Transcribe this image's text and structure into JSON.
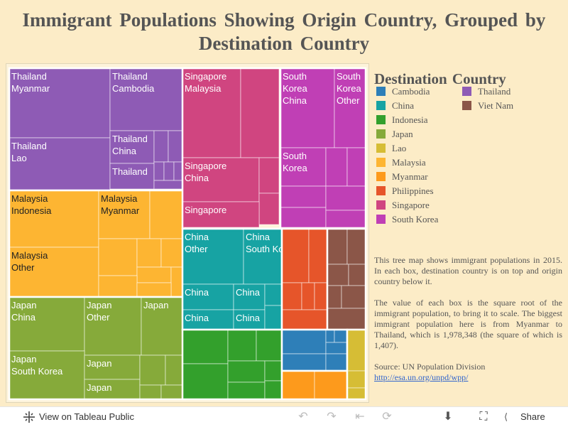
{
  "title": "Immigrant Populations Showing Origin Country, Grouped by Destination Country",
  "legend": {
    "title": "Destination  Country",
    "items": [
      {
        "name": "Cambodia",
        "color": "#2e7fb8"
      },
      {
        "name": "China",
        "color": "#17a3a3"
      },
      {
        "name": "Indonesia",
        "color": "#33a02c"
      },
      {
        "name": "Japan",
        "color": "#86aa3a"
      },
      {
        "name": "Lao",
        "color": "#d6bd35"
      },
      {
        "name": "Malaysia",
        "color": "#fdb532"
      },
      {
        "name": "Myanmar",
        "color": "#fd9a1c"
      },
      {
        "name": "Philippines",
        "color": "#e6552a"
      },
      {
        "name": "Singapore",
        "color": "#d04580"
      },
      {
        "name": "South Korea",
        "color": "#c03fb5"
      },
      {
        "name": "Thailand",
        "color": "#8e5bb5"
      },
      {
        "name": "Viet Nam",
        "color": "#8b5648"
      }
    ]
  },
  "description": {
    "p1": "This tree map shows immigrant populations in 2015. In each box, destination country is on top and origin country below it.",
    "p2": "The value of each box is the square root of the immigrant population, to bring it to scale. The biggest immigrant population here is from Myanmar to Thailand, which is 1,978,348 (the square of which is 1,407).",
    "source_label": "Source: UN Population Division",
    "source_link": "http://esa.un.org/unpd/wpp/"
  },
  "footer": {
    "view_label": "View on Tableau Public",
    "share_label": "Share"
  },
  "icons": {
    "tableau": "tableau-logo-icon",
    "undo": "undo-icon",
    "redo": "redo-icon",
    "revert": "revert-icon",
    "refresh": "refresh-icon",
    "download": "download-icon",
    "fullscreen": "fullscreen-icon",
    "share": "share-icon"
  },
  "chart_data": {
    "type": "treemap",
    "title": "Immigrant Populations Showing Origin Country, Grouped by Destination Country",
    "value_note": "value = square root of immigrant population (2015)",
    "max_value": {
      "destination": "Thailand",
      "origin": "Myanmar",
      "population": 1978348,
      "value": 1407
    },
    "groups": [
      {
        "destination": "Thailand",
        "labeled_boxes": [
          {
            "dest": "Thailand",
            "origin": "Myanmar"
          },
          {
            "dest": "Thailand",
            "origin": "Cambodia"
          },
          {
            "dest": "Thailand",
            "origin": "Lao"
          },
          {
            "dest": "Thailand",
            "origin": "China"
          },
          {
            "dest": "Thailand",
            "origin": ""
          }
        ]
      },
      {
        "destination": "Malaysia",
        "labeled_boxes": [
          {
            "dest": "Malaysia",
            "origin": "Indonesia"
          },
          {
            "dest": "Malaysia",
            "origin": "Myanmar"
          },
          {
            "dest": "Malaysia",
            "origin": "Other"
          }
        ]
      },
      {
        "destination": "Japan",
        "labeled_boxes": [
          {
            "dest": "Japan",
            "origin": "China"
          },
          {
            "dest": "Japan",
            "origin": "Other"
          },
          {
            "dest": "Japan",
            "origin": ""
          },
          {
            "dest": "Japan",
            "origin": "South Korea"
          },
          {
            "dest": "Japan",
            "origin": ""
          },
          {
            "dest": "Japan",
            "origin": ""
          }
        ]
      },
      {
        "destination": "Singapore",
        "labeled_boxes": [
          {
            "dest": "Singapore",
            "origin": "Malaysia"
          },
          {
            "dest": "Singapore",
            "origin": "China"
          },
          {
            "dest": "Singapore",
            "origin": ""
          }
        ]
      },
      {
        "destination": "China",
        "labeled_boxes": [
          {
            "dest": "China",
            "origin": "Other"
          },
          {
            "dest": "China",
            "origin": "South Korea"
          },
          {
            "dest": "China",
            "origin": ""
          },
          {
            "dest": "China",
            "origin": ""
          },
          {
            "dest": "China",
            "origin": ""
          },
          {
            "dest": "China",
            "origin": ""
          }
        ]
      },
      {
        "destination": "South Korea",
        "labeled_boxes": [
          {
            "dest": "South Korea",
            "origin": "China"
          },
          {
            "dest": "South Korea",
            "origin": "Other"
          },
          {
            "dest": "South Korea",
            "origin": ""
          }
        ]
      },
      {
        "destination": "Indonesia",
        "labeled_boxes": []
      },
      {
        "destination": "Philippines",
        "labeled_boxes": []
      },
      {
        "destination": "Viet Nam",
        "labeled_boxes": []
      },
      {
        "destination": "Cambodia",
        "labeled_boxes": []
      },
      {
        "destination": "Myanmar",
        "labeled_boxes": []
      },
      {
        "destination": "Lao",
        "labeled_boxes": []
      }
    ]
  }
}
